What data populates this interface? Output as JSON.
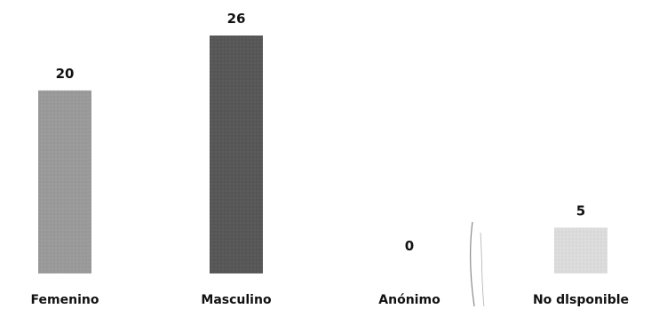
{
  "chart_data": {
    "type": "bar",
    "title": "",
    "xlabel": "",
    "ylabel": "",
    "categories": [
      "Femenino",
      "Masculino",
      "Anónimo",
      "No dlsponible"
    ],
    "values": [
      20,
      26,
      0,
      5
    ],
    "value_labels": [
      "20",
      "26",
      "0",
      "5"
    ],
    "colors": [
      "#9a9a9a",
      "#575757",
      "#c8c8c8",
      "#dcdcdc"
    ],
    "ylim": [
      0,
      26
    ],
    "grid": false,
    "legend": "none"
  }
}
